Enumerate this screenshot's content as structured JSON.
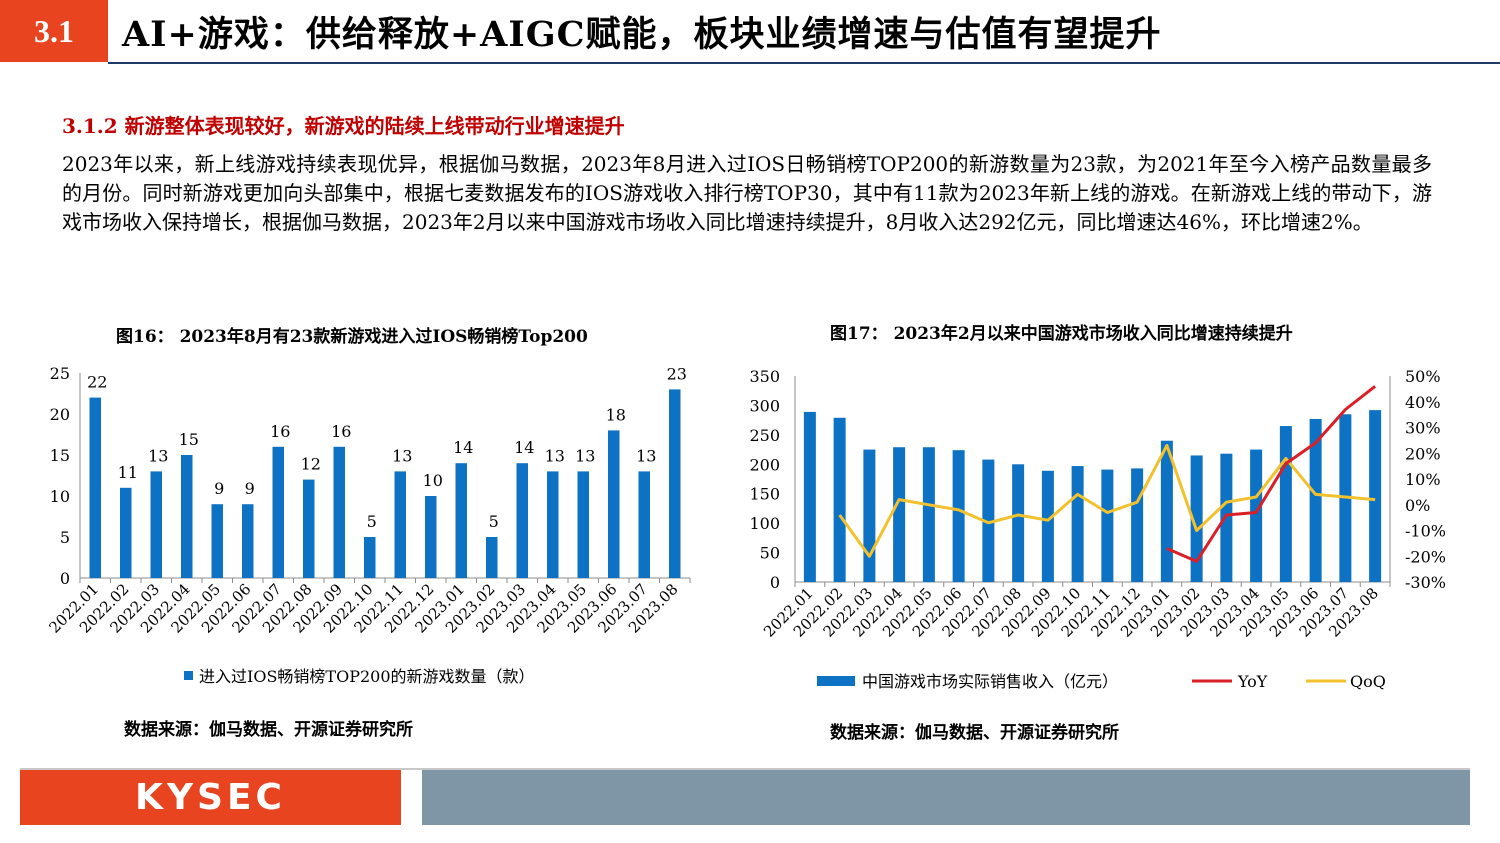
{
  "header": {
    "section_no": "3.1",
    "title": "AI+游戏：供给释放+AIGC赋能，板块业绩增速与估值有望提升"
  },
  "subheading": "3.1.2 新游整体表现较好，新游戏的陆续上线带动行业增速提升",
  "paragraph": "2023年以来，新上线游戏持续表现优异，根据伽马数据，2023年8月进入过IOS日畅销榜TOP200的新游数量为23款，为2021年至今入榜产品数量最多的月份。同时新游戏更加向头部集中，根据七麦数据发布的IOS游戏收入排行榜TOP30，其中有11款为2023年新上线的游戏。在新游戏上线的带动下，游戏市场收入保持增长，根据伽马数据，2023年2月以来中国游戏市场收入同比增速持续提升，8月收入达292亿元，同比增速达46%，环比增速2%。",
  "figures": {
    "fig16_title": "图16：  2023年8月有23款新游戏进入过IOS畅销榜Top200",
    "fig17_title": "图17：  2023年2月以来中国游戏市场收入同比增速持续提升",
    "source1": "数据来源：伽马数据、开源证券研究所",
    "source2": "数据来源：伽马数据、开源证券研究所"
  },
  "footer": {
    "logo_text": "KYSEC"
  },
  "chart_data": [
    {
      "type": "bar",
      "title": "图16：  2023年8月有23款新游戏进入过IOS畅销榜Top200",
      "categories": [
        "2022.01",
        "2022.02",
        "2022.03",
        "2022.04",
        "2022.05",
        "2022.06",
        "2022.07",
        "2022.08",
        "2022.09",
        "2022.10",
        "2022.11",
        "2022.12",
        "2023.01",
        "2023.02",
        "2023.03",
        "2023.04",
        "2023.05",
        "2023.06",
        "2023.07",
        "2023.08"
      ],
      "series": [
        {
          "name": "进入过IOS畅销榜TOP200的新游戏数量（款）",
          "values": [
            22,
            11,
            13,
            15,
            9,
            9,
            16,
            12,
            16,
            5,
            13,
            10,
            14,
            5,
            14,
            13,
            13,
            18,
            13,
            23
          ]
        }
      ],
      "ylim": [
        0,
        25
      ],
      "yticks": [
        0,
        5,
        10,
        15,
        20,
        25
      ],
      "data_labels": true,
      "legend": "bottom",
      "colors": {
        "bar": "#0e72c4"
      }
    },
    {
      "type": "bar",
      "title": "图17：  2023年2月以来中国游戏市场收入同比增速持续提升",
      "categories": [
        "2022.01",
        "2022.02",
        "2022.03",
        "2022.04",
        "2022.05",
        "2022.06",
        "2022.07",
        "2022.08",
        "2022.09",
        "2022.10",
        "2022.11",
        "2022.12",
        "2023.01",
        "2023.02",
        "2023.03",
        "2023.04",
        "2023.05",
        "2023.06",
        "2023.07",
        "2023.08"
      ],
      "series": [
        {
          "name": "中国游戏市场实际销售收入（亿元）",
          "type": "bar",
          "axis": "left",
          "values": [
            289,
            279,
            225,
            229,
            229,
            224,
            208,
            200,
            189,
            197,
            191,
            193,
            240,
            215,
            218,
            225,
            265,
            277,
            285,
            292
          ]
        },
        {
          "name": "YoY",
          "type": "line",
          "axis": "right",
          "values": [
            null,
            null,
            null,
            null,
            null,
            null,
            null,
            null,
            null,
            null,
            null,
            null,
            -17,
            -22,
            -4,
            -3,
            16,
            24,
            37,
            46
          ]
        },
        {
          "name": "QoQ",
          "type": "line",
          "axis": "right",
          "values": [
            null,
            -4,
            -20,
            2,
            0,
            -2,
            -7,
            -4,
            -6,
            4,
            -3,
            1,
            23,
            -10,
            1,
            3,
            18,
            4,
            3,
            2
          ]
        }
      ],
      "ylim_left": [
        0,
        350
      ],
      "yticks_left": [
        0,
        50,
        100,
        150,
        200,
        250,
        300,
        350
      ],
      "ylim_right": [
        -30,
        50
      ],
      "yticks_right": [
        "-30%",
        "-20%",
        "-10%",
        "0%",
        "10%",
        "20%",
        "30%",
        "40%",
        "50%"
      ],
      "legend": "bottom",
      "colors": {
        "bar": "#0e72c4",
        "yoy": "#d92027",
        "qoq": "#f2c12e"
      }
    }
  ]
}
